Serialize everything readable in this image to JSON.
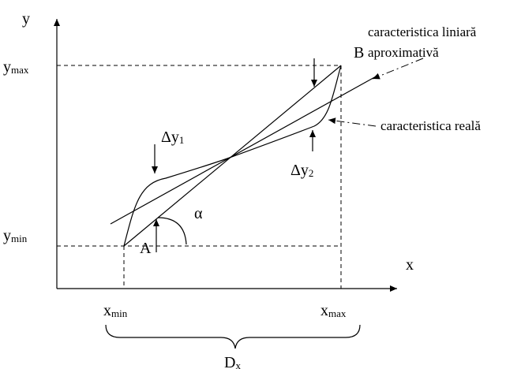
{
  "axes": {
    "x_label": "x",
    "y_label": "y"
  },
  "ticks": {
    "y_max": {
      "base": "y",
      "sub": "max"
    },
    "y_min": {
      "base": "y",
      "sub": "min"
    },
    "x_min": {
      "base": "x",
      "sub": "min"
    },
    "x_max": {
      "base": "x",
      "sub": "max"
    }
  },
  "points": {
    "a": "A",
    "b": "B"
  },
  "angle": "α",
  "deltas": {
    "dy1": {
      "base": "Δy",
      "sub": "1"
    },
    "dy2": {
      "base": "Δy",
      "sub": "2"
    }
  },
  "annotations": {
    "linear_line1": "caracteristica liniară",
    "linear_line2": "aproximativă",
    "real": "caracteristica reală"
  },
  "domain": {
    "base": "D",
    "sub": "x"
  }
}
